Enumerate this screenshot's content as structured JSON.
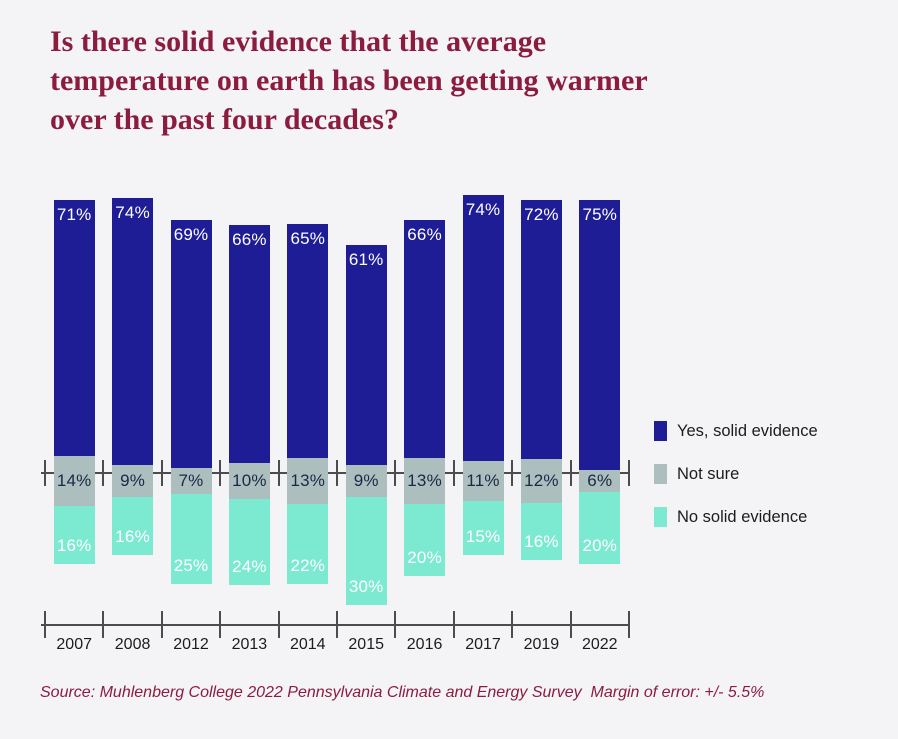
{
  "title": "Is there solid evidence that the average temperature on earth has been getting warmer over the past four decades?",
  "source_note": "Source: Muhlenberg College 2022 Pennsylvania Climate and Energy Survey  Margin of error: +/- 5.5%",
  "colors": {
    "background": "#f4f4f6",
    "title_maroon": "#8c1c3e",
    "yes_navy": "#1e1d96",
    "not_sure_gray": "#adbebf",
    "no_teal": "#7ce9d1",
    "axis_gray": "#4c4c4c",
    "label_on_dark": "#ffffff",
    "label_on_gray": "#1a2945"
  },
  "legend": [
    {
      "label": "Yes, solid evidence",
      "color": "#1e1d96"
    },
    {
      "label": "Not sure",
      "color": "#adbebf"
    },
    {
      "label": "No solid evidence",
      "color": "#7ce9d1"
    }
  ],
  "chart_data": {
    "type": "bar",
    "subtype": "diverging-stacked-percent",
    "unit": "%",
    "title": "Is there solid evidence that the average temperature on earth has been getting warmer over the past four decades?",
    "categories": [
      "2007",
      "2008",
      "2012",
      "2013",
      "2014",
      "2015",
      "2016",
      "2017",
      "2019",
      "2022"
    ],
    "series": [
      {
        "name": "Yes, solid evidence",
        "color": "#1e1d96",
        "values": [
          71,
          74,
          69,
          66,
          65,
          61,
          66,
          74,
          72,
          75
        ]
      },
      {
        "name": "Not sure",
        "color": "#adbebf",
        "values": [
          14,
          9,
          7,
          10,
          13,
          9,
          13,
          11,
          12,
          6
        ]
      },
      {
        "name": "No solid evidence",
        "color": "#7ce9d1",
        "values": [
          16,
          16,
          25,
          24,
          22,
          30,
          20,
          15,
          16,
          20
        ]
      }
    ],
    "layout_hints": {
      "orientation": "vertical",
      "neutral_series_centered_on_axis": "Not sure",
      "grid": false,
      "legend_position": "right",
      "data_labels": "inside, suffixed with %"
    }
  }
}
